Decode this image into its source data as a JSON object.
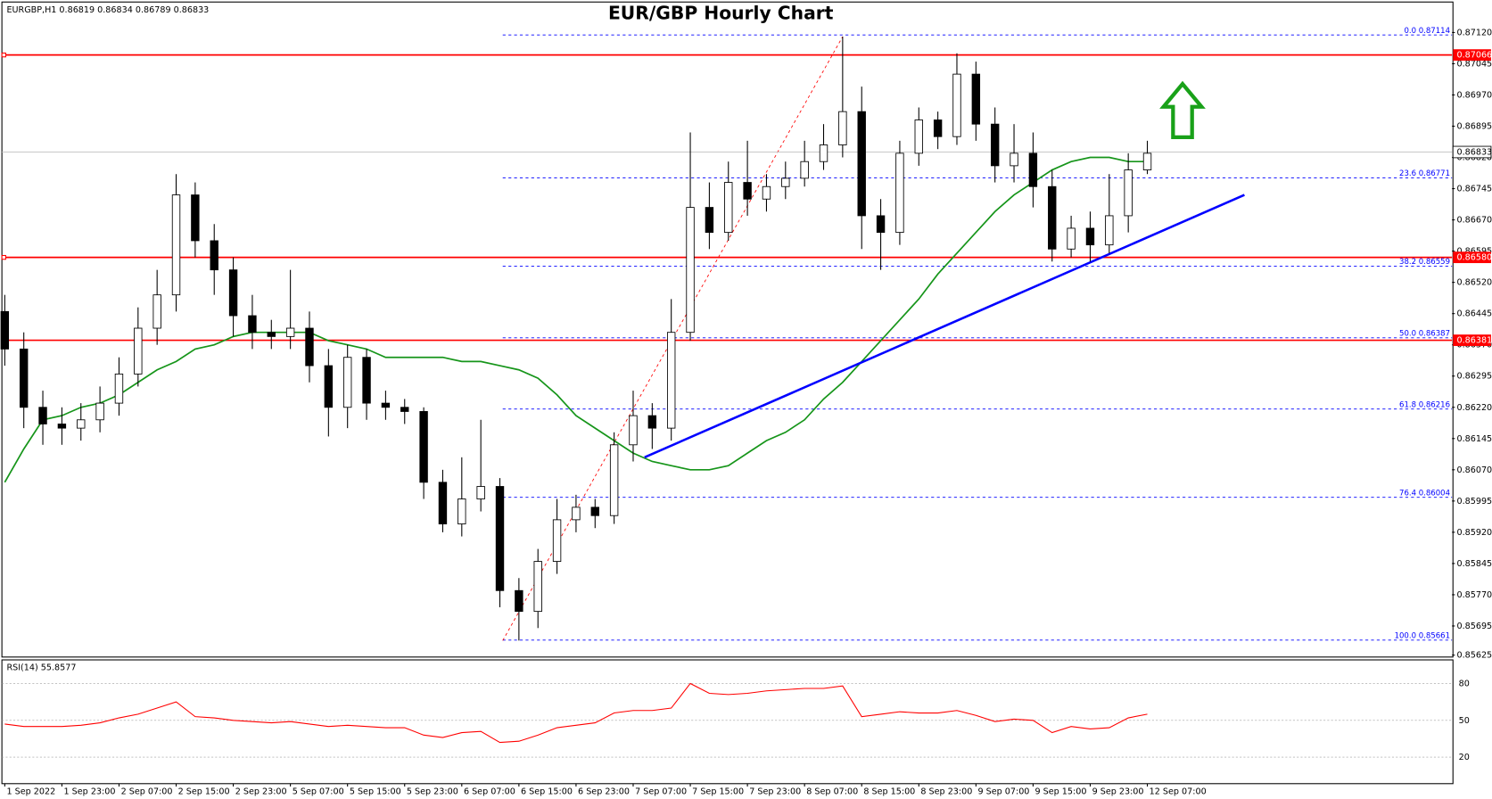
{
  "chart_data": {
    "type": "candlestick",
    "title": "EUR/GBP Hourly Chart",
    "header": "EURGBP,H1 0.86819 0.86834 0.86789 0.86833",
    "categories": [
      "1 Sep 2022",
      null,
      null,
      "1 Sep 23:00",
      null,
      null,
      "2 Sep 07:00",
      null,
      null,
      "2 Sep 15:00",
      null,
      null,
      "2 Sep 23:00",
      null,
      null,
      "5 Sep 07:00",
      null,
      null,
      "5 Sep 15:00",
      null,
      null,
      "5 Sep 23:00",
      null,
      null,
      "6 Sep 07:00",
      null,
      null,
      "6 Sep 15:00",
      null,
      null,
      "6 Sep 23:00",
      null,
      null,
      "7 Sep 07:00",
      null,
      null,
      "7 Sep 15:00",
      null,
      null,
      "7 Sep 23:00",
      null,
      null,
      "8 Sep 07:00",
      null,
      null,
      "8 Sep 15:00",
      null,
      null,
      "8 Sep 23:00",
      null,
      null,
      "9 Sep 07:00",
      null,
      null,
      "9 Sep 15:00",
      null,
      null,
      "9 Sep 23:00",
      null,
      null,
      "12 Sep 07:00"
    ],
    "open": [
      0.8645,
      0.8636,
      0.8622,
      0.8618,
      0.8617,
      0.8619,
      0.8623,
      0.863,
      0.8641,
      0.8649,
      0.8673,
      0.8662,
      0.8655,
      0.8644,
      0.864,
      0.8639,
      0.8641,
      0.8632,
      0.8622,
      0.8634,
      0.8623,
      0.8622,
      0.8621,
      0.8604,
      0.8594,
      0.86,
      0.8603,
      0.8578,
      0.8573,
      0.8585,
      0.8595,
      0.8598,
      0.8596,
      0.8613,
      0.862,
      0.8617,
      0.864,
      0.867,
      0.8664,
      0.8676,
      0.8672,
      0.8675,
      0.8677,
      0.8681,
      0.8685,
      0.8693,
      0.8668,
      0.8664,
      0.8683,
      0.8691,
      0.8687,
      0.8702,
      0.869,
      0.868,
      0.8683,
      0.8675,
      0.866,
      0.8665,
      0.8661,
      0.8668,
      0.8679
    ],
    "high": [
      0.8649,
      0.864,
      0.8626,
      0.8622,
      0.8623,
      0.8627,
      0.8634,
      0.8646,
      0.8655,
      0.8678,
      0.8676,
      0.8666,
      0.8658,
      0.8649,
      0.8643,
      0.8655,
      0.8645,
      0.8636,
      0.8637,
      0.8636,
      0.8626,
      0.8624,
      0.8622,
      0.8607,
      0.861,
      0.8619,
      0.8605,
      0.8581,
      0.8588,
      0.86,
      0.8601,
      0.86,
      0.8616,
      0.8626,
      0.8623,
      0.8648,
      0.8688,
      0.8676,
      0.8681,
      0.8686,
      0.8678,
      0.8681,
      0.8686,
      0.869,
      0.8711,
      0.8699,
      0.8672,
      0.8686,
      0.8694,
      0.8693,
      0.8707,
      0.8705,
      0.8694,
      0.869,
      0.8688,
      0.8679,
      0.8668,
      0.8669,
      0.8678,
      0.8683,
      0.8686
    ],
    "low": [
      0.8632,
      0.8617,
      0.8613,
      0.8613,
      0.8614,
      0.8616,
      0.862,
      0.8627,
      0.8637,
      0.8645,
      0.8658,
      0.8649,
      0.8639,
      0.8636,
      0.8636,
      0.8636,
      0.8628,
      0.8615,
      0.8617,
      0.8619,
      0.8619,
      0.8618,
      0.86,
      0.8592,
      0.8591,
      0.8597,
      0.8574,
      0.8566,
      0.8569,
      0.8582,
      0.8592,
      0.8593,
      0.8594,
      0.8609,
      0.8612,
      0.8614,
      0.8638,
      0.866,
      0.8662,
      0.8668,
      0.8669,
      0.8672,
      0.8675,
      0.8679,
      0.8682,
      0.866,
      0.8655,
      0.8661,
      0.868,
      0.8684,
      0.8685,
      0.8686,
      0.8676,
      0.8676,
      0.867,
      0.8657,
      0.8658,
      0.8657,
      0.8659,
      0.8664,
      0.8678
    ],
    "close": [
      0.8636,
      0.8622,
      0.8618,
      0.8617,
      0.8619,
      0.8623,
      0.863,
      0.8641,
      0.8649,
      0.8673,
      0.8662,
      0.8655,
      0.8644,
      0.864,
      0.8639,
      0.8641,
      0.8632,
      0.8622,
      0.8634,
      0.8623,
      0.8622,
      0.8621,
      0.8604,
      0.8594,
      0.86,
      0.8603,
      0.8578,
      0.8573,
      0.8585,
      0.8595,
      0.8598,
      0.8596,
      0.8613,
      0.862,
      0.8617,
      0.864,
      0.867,
      0.8664,
      0.8676,
      0.8672,
      0.8675,
      0.8677,
      0.8681,
      0.8685,
      0.8693,
      0.8668,
      0.8664,
      0.8683,
      0.8691,
      0.8687,
      0.8702,
      0.869,
      0.868,
      0.8683,
      0.8675,
      0.866,
      0.8665,
      0.8661,
      0.8668,
      0.8679,
      0.8683
    ],
    "moving_average": {
      "color": "#16951a",
      "values": [
        0.8604,
        0.8612,
        0.8619,
        0.862,
        0.8622,
        0.8623,
        0.8625,
        0.8628,
        0.8631,
        0.8633,
        0.8636,
        0.8637,
        0.8639,
        0.864,
        0.864,
        0.864,
        0.864,
        0.8638,
        0.8637,
        0.8636,
        0.8634,
        0.8634,
        0.8634,
        0.8634,
        0.8633,
        0.8633,
        0.8632,
        0.8631,
        0.8629,
        0.8625,
        0.862,
        0.8617,
        0.8614,
        0.8611,
        0.8609,
        0.8608,
        0.8607,
        0.8607,
        0.8608,
        0.8611,
        0.8614,
        0.8616,
        0.8619,
        0.8624,
        0.8628,
        0.8633,
        0.8638,
        0.8643,
        0.8648,
        0.8654,
        0.8659,
        0.8664,
        0.8669,
        0.8673,
        0.8676,
        0.8679,
        0.8681,
        0.8682,
        0.8682,
        0.8681,
        0.8681
      ]
    },
    "trendline": {
      "color": "#0000ff",
      "start": [
        33.6,
        0.861
      ],
      "end": [
        65.1,
        0.8673
      ]
    },
    "ylim": [
      0.85625,
      0.8712
    ],
    "yticks": [
      {
        "value": 0.8712,
        "label": "0.87120"
      },
      0.87045,
      {
        "value": 0.8697,
        "label": "0.86970"
      },
      0.86895,
      {
        "value": 0.8682,
        "label": "0.86820"
      },
      0.86745,
      {
        "value": 0.8667,
        "label": "0.86670"
      },
      0.86595,
      {
        "value": 0.8652,
        "label": "0.86520"
      },
      0.86445,
      {
        "value": 0.8637,
        "label": "0.86370"
      },
      0.86295,
      {
        "value": 0.8622,
        "label": "0.86220"
      },
      0.86145,
      {
        "value": 0.8607,
        "label": "0.86070"
      },
      0.85995,
      {
        "value": 0.8592,
        "label": "0.85920"
      },
      0.85845,
      {
        "value": 0.8577,
        "label": "0.85770"
      },
      0.85695,
      0.85625
    ],
    "levels": [
      0.87066,
      {
        "value": 0.8658,
        "label": "0.86580"
      },
      0.86381
    ],
    "level_color": "#ff0000",
    "current_price": 0.86833,
    "fibonacci": [
      {
        "label": "0.0",
        "value": 0.87114
      },
      {
        "label": "23.6",
        "value": 0.86771
      },
      {
        "label": "38.2",
        "value": 0.86559
      },
      {
        "label": "50.0",
        "value": 0.86387
      },
      {
        "label": "61.8",
        "value": 0.86216
      },
      {
        "label": "76.4",
        "value": 0.86004
      },
      {
        "label": "100.0",
        "value": 0.85661
      }
    ],
    "rsi": {
      "label": "RSI(14) 55.8577",
      "color": "#ff0000",
      "values": [
        47,
        45,
        45,
        45,
        46,
        48,
        52,
        55,
        60,
        65,
        53,
        52,
        50,
        49,
        48,
        49,
        47,
        45,
        46,
        45,
        44,
        44,
        38,
        36,
        40,
        41,
        32,
        33,
        38,
        44,
        46,
        48,
        56,
        58,
        58,
        60,
        80,
        72,
        71,
        72,
        74,
        75,
        76,
        76,
        78,
        53,
        55,
        57,
        56,
        56,
        58,
        54,
        49,
        51,
        50,
        40,
        45,
        43,
        44,
        52,
        55
      ],
      "ylim": [
        0,
        100
      ],
      "yticks": [
        20,
        50,
        80
      ]
    }
  }
}
